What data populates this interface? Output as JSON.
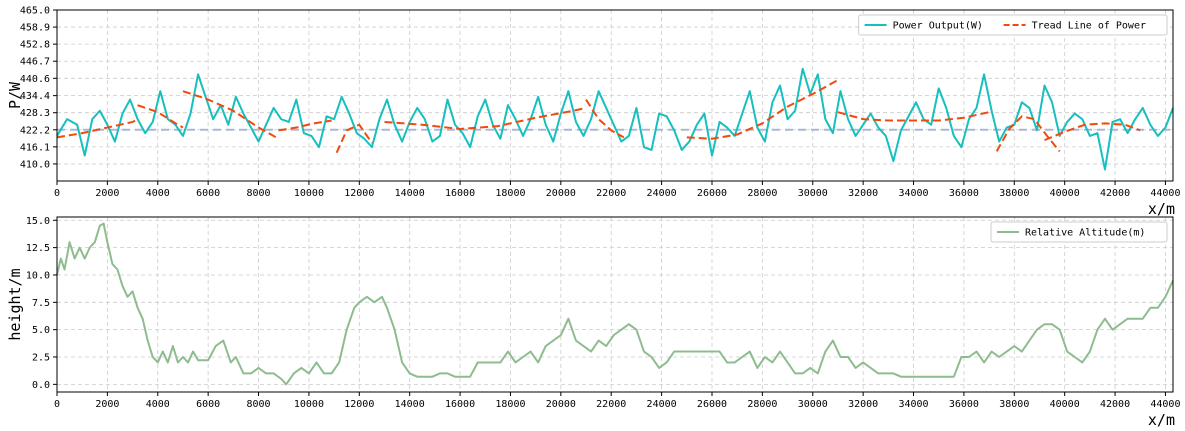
{
  "chart_data": [
    {
      "type": "line",
      "ylabel": "P/W",
      "xlabel": "x/m",
      "xlim": [
        0,
        44300
      ],
      "ylim": [
        403.9,
        465.0
      ],
      "xticks": [
        "0",
        "2000",
        "4000",
        "6000",
        "8000",
        "10000",
        "12000",
        "14000",
        "16000",
        "18000",
        "20000",
        "22000",
        "24000",
        "26000",
        "28000",
        "30000",
        "32000",
        "34000",
        "36000",
        "38000",
        "40000",
        "42000",
        "44000"
      ],
      "yticks": [
        "410.0",
        "416.1",
        "422.2",
        "428.3",
        "434.4",
        "440.6",
        "446.7",
        "452.8",
        "458.9",
        "465.0"
      ],
      "grid": true,
      "legend_position": "top-right",
      "reference_line": {
        "y": 422.2,
        "style": "dashed",
        "color": "#aab8d6"
      },
      "series": [
        {
          "name": "Power Output(W)",
          "color": "#17bfbf",
          "x": [
            0,
            400,
            800,
            1100,
            1400,
            1700,
            2000,
            2300,
            2600,
            2900,
            3200,
            3500,
            3800,
            4100,
            4400,
            4700,
            5000,
            5300,
            5600,
            5900,
            6200,
            6500,
            6800,
            7100,
            7400,
            7700,
            8000,
            8300,
            8600,
            8900,
            9200,
            9500,
            9800,
            10100,
            10400,
            10700,
            11000,
            11300,
            11600,
            11900,
            12200,
            12500,
            12800,
            13100,
            13400,
            13700,
            14000,
            14300,
            14600,
            14900,
            15200,
            15500,
            15800,
            16100,
            16400,
            16700,
            17000,
            17300,
            17600,
            17900,
            18200,
            18500,
            18800,
            19100,
            19400,
            19700,
            20000,
            20300,
            20600,
            20900,
            21200,
            21500,
            21800,
            22100,
            22400,
            22700,
            23000,
            23300,
            23600,
            23900,
            24200,
            24500,
            24800,
            25100,
            25400,
            25700,
            26000,
            26300,
            26600,
            26900,
            27200,
            27500,
            27800,
            28100,
            28400,
            28700,
            29000,
            29300,
            29600,
            29900,
            30200,
            30500,
            30800,
            31100,
            31400,
            31700,
            32000,
            32300,
            32600,
            32900,
            33200,
            33500,
            33800,
            34100,
            34400,
            34700,
            35000,
            35300,
            35600,
            35900,
            36200,
            36500,
            36800,
            37100,
            37400,
            37700,
            38000,
            38300,
            38600,
            38900,
            39200,
            39500,
            39800,
            40100,
            40400,
            40700,
            41000,
            41300,
            41600,
            41900,
            42200,
            42500,
            42800,
            43100,
            43400,
            43700,
            44000,
            44300
          ],
          "values": [
            420,
            426,
            424,
            413,
            426,
            429,
            424,
            418,
            428,
            433,
            426,
            421,
            425,
            436,
            426,
            424,
            420,
            428,
            442,
            434,
            426,
            431,
            424,
            434,
            428,
            423,
            418,
            424,
            430,
            426,
            425,
            433,
            421,
            420,
            416,
            427,
            426,
            434,
            428,
            421,
            419,
            416,
            426,
            433,
            424,
            418,
            425,
            430,
            426,
            418,
            420,
            433,
            424,
            421,
            416,
            427,
            433,
            424,
            419,
            431,
            426,
            420,
            426,
            434,
            424,
            418,
            428,
            436,
            425,
            420,
            426,
            436,
            430,
            424,
            418,
            420,
            430,
            416,
            415,
            428,
            427,
            422,
            415,
            418,
            424,
            428,
            413,
            425,
            423,
            420,
            428,
            436,
            423,
            418,
            432,
            438,
            426,
            429,
            444,
            435,
            442,
            426,
            421,
            436,
            426,
            420,
            424,
            428,
            423,
            420,
            411,
            422,
            427,
            432,
            426,
            424,
            437,
            430,
            420,
            416,
            426,
            430,
            442,
            429,
            418,
            423,
            424,
            432,
            430,
            422,
            438,
            432,
            420,
            425,
            428,
            426,
            420,
            421,
            408,
            425,
            426,
            421,
            426,
            430,
            424,
            420,
            423,
            430
          ]
        },
        {
          "name": "Tread Line of Power",
          "color": "#f04a0c",
          "style": "dashed",
          "segments": [
            {
              "x": [
                0,
                1000,
                2000,
                3000,
                3200
              ],
              "values": [
                419.5,
                421.0,
                423.0,
                425.0,
                426.0
              ]
            },
            {
              "x": [
                3200,
                4000,
                4800,
                5000
              ],
              "values": [
                431.0,
                428.5,
                424.0,
                423.0
              ]
            },
            {
              "x": [
                5000,
                6000,
                7000,
                8000,
                8800
              ],
              "values": [
                436.0,
                433.0,
                429.0,
                423.0,
                419.0
              ]
            },
            {
              "x": [
                8800,
                9500,
                10200,
                10900
              ],
              "values": [
                422.0,
                423.0,
                424.5,
                425.5
              ]
            },
            {
              "x": [
                11100,
                11500,
                12000,
                12500
              ],
              "values": [
                414.0,
                422.0,
                424.0,
                417.5
              ]
            },
            {
              "x": [
                13000,
                14500,
                16000,
                17500,
                19000,
                20500,
                21000
              ],
              "values": [
                425.0,
                424.0,
                422.5,
                423.5,
                426.5,
                429.0,
                430.0
              ]
            },
            {
              "x": [
                21000,
                21500,
                22000,
                22500
              ],
              "values": [
                433.0,
                426.0,
                422.0,
                419.5
              ]
            },
            {
              "x": [
                25000,
                26000,
                27000,
                28000,
                29000,
                30000,
                31000
              ],
              "values": [
                419.5,
                419.0,
                420.5,
                424.5,
                430.5,
                435.0,
                440.0
              ]
            },
            {
              "x": [
                31000,
                32000,
                33000,
                34000,
                35000,
                36000,
                37000
              ],
              "values": [
                428.5,
                426.0,
                425.5,
                425.5,
                425.5,
                426.5,
                428.5
              ]
            },
            {
              "x": [
                37300,
                37800,
                38300,
                38800,
                39300,
                39800
              ],
              "values": [
                414.5,
                422.5,
                427.0,
                426.0,
                420.0,
                414.5
              ]
            },
            {
              "x": [
                39200,
                40000,
                40800,
                41600,
                42400,
                43000
              ],
              "values": [
                418.5,
                421.5,
                424.0,
                424.5,
                424.0,
                422.0
              ]
            }
          ]
        }
      ]
    },
    {
      "type": "line",
      "ylabel": "height/m",
      "xlabel": "x/m",
      "xlim": [
        0,
        44300
      ],
      "ylim": [
        -0.7,
        15.3
      ],
      "xticks": [
        "0",
        "2000",
        "4000",
        "6000",
        "8000",
        "10000",
        "12000",
        "14000",
        "16000",
        "18000",
        "20000",
        "22000",
        "24000",
        "26000",
        "28000",
        "30000",
        "32000",
        "34000",
        "36000",
        "38000",
        "40000",
        "42000",
        "44000"
      ],
      "yticks": [
        "0.0",
        "2.5",
        "5.0",
        "7.5",
        "10.0",
        "12.5",
        "15.0"
      ],
      "grid": true,
      "legend_position": "top-right",
      "series": [
        {
          "name": "Relative Altitude(m)",
          "color": "#8fbc8f",
          "x": [
            0,
            150,
            300,
            500,
            700,
            900,
            1100,
            1300,
            1500,
            1700,
            1850,
            2000,
            2200,
            2400,
            2600,
            2800,
            3000,
            3200,
            3400,
            3600,
            3800,
            4000,
            4200,
            4400,
            4600,
            4800,
            5000,
            5200,
            5400,
            5600,
            5800,
            6000,
            6300,
            6600,
            6900,
            7100,
            7400,
            7700,
            8000,
            8300,
            8600,
            8900,
            9100,
            9400,
            9700,
            10000,
            10300,
            10600,
            10900,
            11200,
            11500,
            11800,
            12000,
            12300,
            12600,
            12900,
            13100,
            13400,
            13700,
            14000,
            14300,
            14600,
            14900,
            15200,
            15500,
            15800,
            16100,
            16400,
            16700,
            17000,
            17300,
            17600,
            17900,
            18200,
            18500,
            18800,
            19100,
            19400,
            19700,
            20000,
            20300,
            20600,
            20900,
            21200,
            21500,
            21800,
            22100,
            22400,
            22700,
            23000,
            23300,
            23600,
            23900,
            24200,
            24500,
            24800,
            25100,
            25400,
            25700,
            26000,
            26300,
            26600,
            26900,
            27200,
            27500,
            27800,
            28100,
            28400,
            28700,
            29000,
            29300,
            29600,
            29900,
            30200,
            30500,
            30800,
            31100,
            31400,
            31700,
            32000,
            32300,
            32600,
            32900,
            33200,
            33500,
            33800,
            34100,
            34400,
            34700,
            35000,
            35300,
            35600,
            35900,
            36200,
            36500,
            36800,
            37100,
            37400,
            37700,
            38000,
            38300,
            38600,
            38900,
            39200,
            39500,
            39800,
            40100,
            40400,
            40700,
            41000,
            41300,
            41600,
            41900,
            42200,
            42500,
            42800,
            43100,
            43400,
            43700,
            44000,
            44300
          ],
          "values": [
            10,
            11.5,
            10.5,
            13,
            11.5,
            12.5,
            11.5,
            12.5,
            13,
            14.5,
            14.7,
            13,
            11,
            10.5,
            9,
            8,
            8.5,
            7,
            6,
            4,
            2.5,
            2,
            3,
            2,
            3.5,
            2,
            2.5,
            2,
            3,
            2.2,
            2.2,
            2.2,
            3.5,
            4,
            2,
            2.5,
            1,
            1,
            1.5,
            1,
            1,
            0.5,
            0,
            1,
            1.5,
            1,
            2,
            1,
            1,
            2,
            5,
            7,
            7.5,
            8,
            7.5,
            8,
            7,
            5,
            2,
            1,
            0.7,
            0.7,
            0.7,
            1,
            1,
            0.7,
            0.7,
            0.7,
            2,
            2,
            2,
            2,
            3,
            2,
            2.5,
            3,
            2,
            3.5,
            4,
            4.5,
            6,
            4,
            3.5,
            3,
            4,
            3.5,
            4.5,
            5,
            5.5,
            5,
            3,
            2.5,
            1.5,
            2,
            3,
            3,
            3,
            3,
            3,
            3,
            3,
            2,
            2,
            2.5,
            3,
            1.5,
            2.5,
            2,
            3,
            2,
            1,
            1,
            1.5,
            1,
            3,
            4,
            2.5,
            2.5,
            1.5,
            2,
            1.5,
            1,
            1,
            1,
            0.7,
            0.7,
            0.7,
            0.7,
            0.7,
            0.7,
            0.7,
            0.7,
            2.5,
            2.5,
            3,
            2,
            3,
            2.5,
            3,
            3.5,
            3,
            4,
            5,
            5.5,
            5.5,
            5,
            3,
            2.5,
            2,
            3,
            5,
            6,
            5,
            5.5,
            6,
            6,
            6,
            7,
            7,
            8,
            9.5
          ]
        }
      ]
    }
  ]
}
